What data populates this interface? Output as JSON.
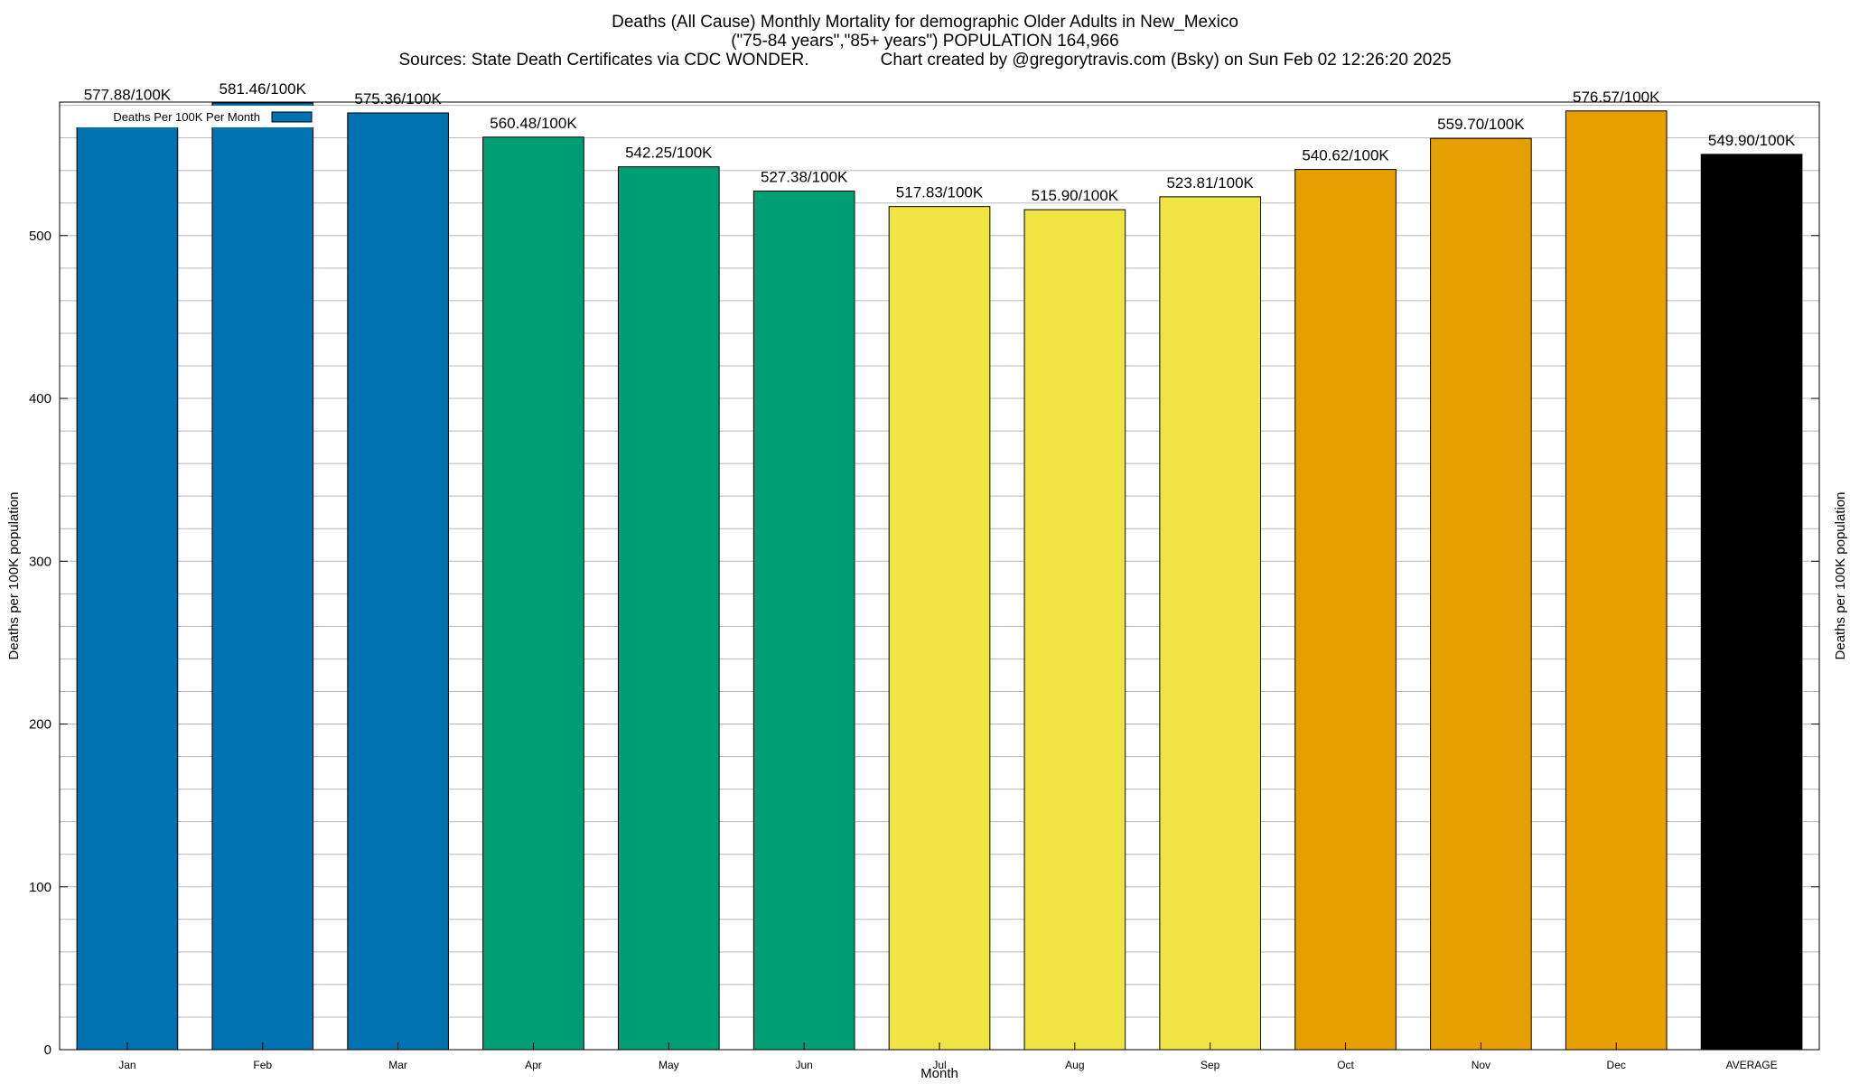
{
  "title": {
    "line1": "Deaths (All Cause) Monthly Mortality for demographic Older Adults in New_Mexico",
    "line2": "(\"75-84 years\",\"85+ years\") POPULATION 164,966",
    "line3": "Sources: State Death Certificates via CDC WONDER.               Chart created by @gregorytravis.com (Bsky) on Sun Feb 02 12:26:20 2025"
  },
  "chart_data": {
    "type": "bar",
    "xlabel": "Month",
    "ylabel": "Deaths per 100K population",
    "ylabel_right": "Deaths per 100K population",
    "ylim": [
      0,
      582
    ],
    "y_ticks": [
      0,
      100,
      200,
      300,
      400,
      500
    ],
    "y_minor_step": 20,
    "grid": true,
    "legend": {
      "label": "Deaths Per 100K Per Month",
      "position": "top-left",
      "color": "#0072b2"
    },
    "label_suffix": "/100K",
    "categories": [
      "Jan",
      "Feb",
      "Mar",
      "Apr",
      "May",
      "Jun",
      "Jul",
      "Aug",
      "Sep",
      "Oct",
      "Nov",
      "Dec",
      "AVERAGE"
    ],
    "values": [
      577.88,
      581.46,
      575.36,
      560.48,
      542.25,
      527.38,
      517.83,
      515.9,
      523.81,
      540.62,
      559.7,
      576.57,
      549.9
    ],
    "labels": [
      "577.88/100K",
      "581.46/100K",
      "575.36/100K",
      "560.48/100K",
      "542.25/100K",
      "527.38/100K",
      "517.83/100K",
      "515.90/100K",
      "523.81/100K",
      "540.62/100K",
      "559.70/100K",
      "576.57/100K",
      "549.90/100K"
    ],
    "colors": [
      "#0072b2",
      "#0072b2",
      "#0072b2",
      "#009e73",
      "#009e73",
      "#009e73",
      "#f0e442",
      "#f0e442",
      "#f0e442",
      "#e69f00",
      "#e69f00",
      "#e69f00",
      "#000000"
    ]
  }
}
